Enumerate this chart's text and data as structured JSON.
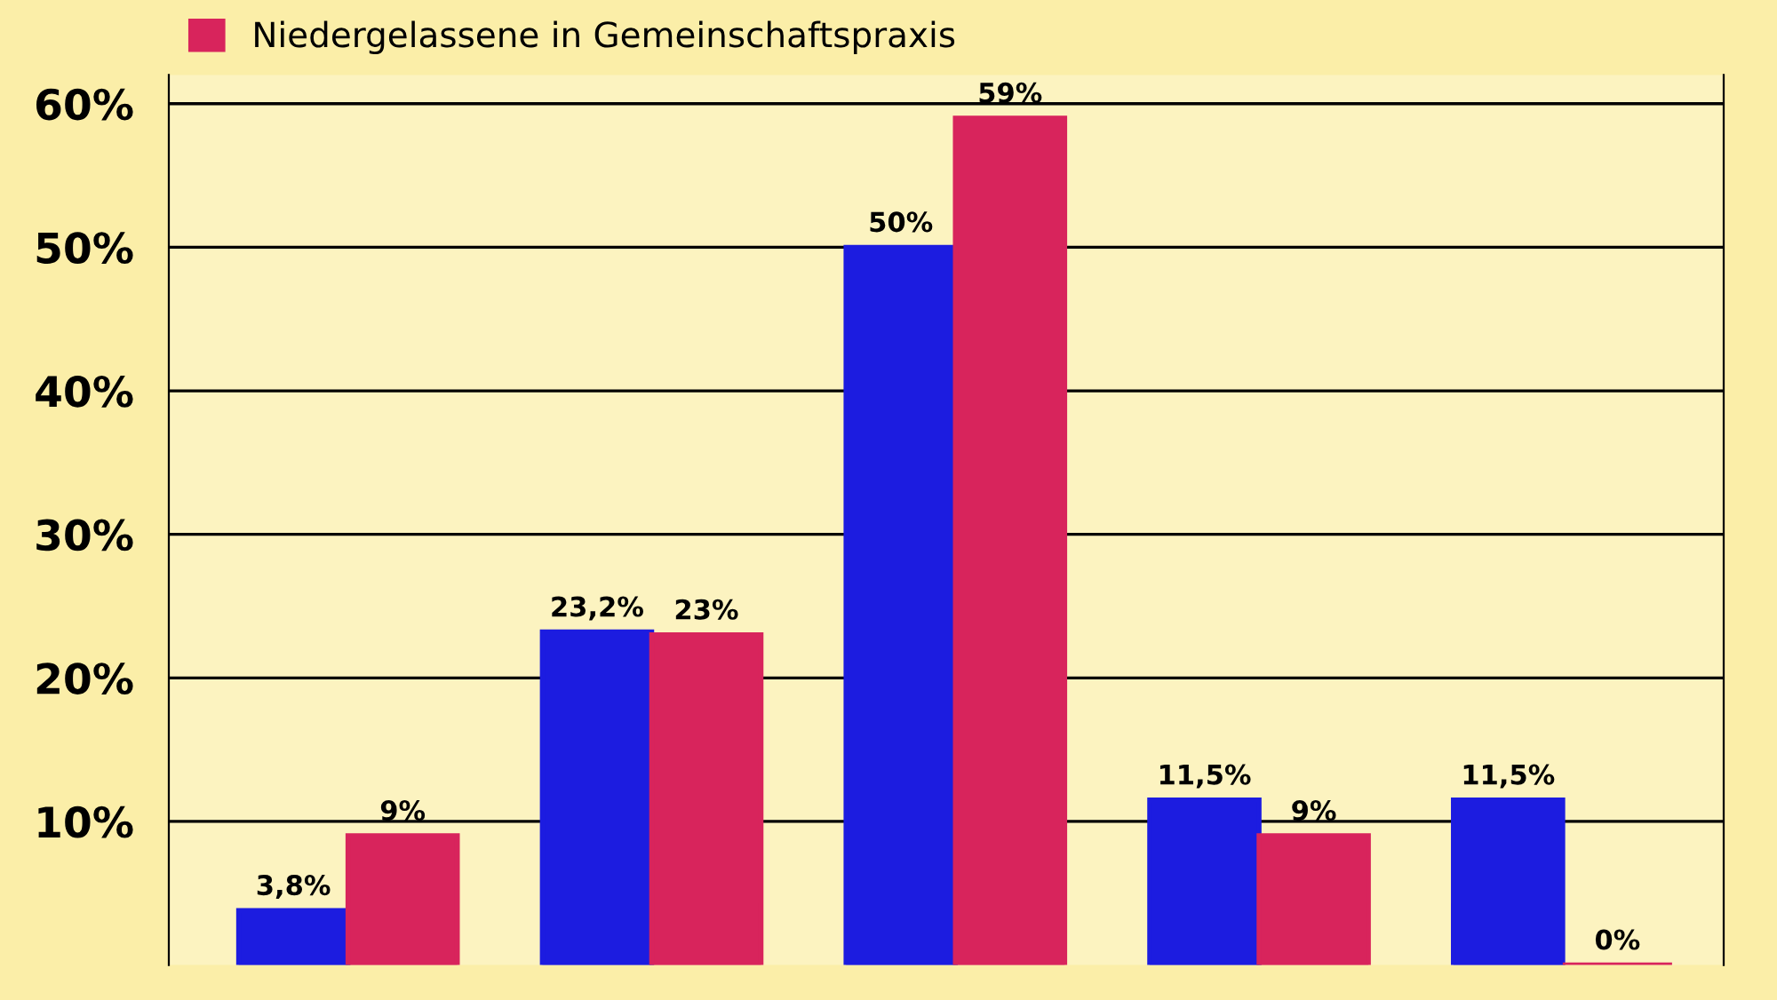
{
  "chart_data": {
    "type": "bar",
    "categories": [
      null,
      null,
      null,
      null,
      null
    ],
    "series": [
      {
        "color": "#1c1ce0",
        "values": [
          3.8,
          23.2,
          50,
          11.5,
          11.5
        ],
        "value_labels": [
          "3,8%",
          "23,2%",
          "50%",
          "11,5%",
          "11,5%"
        ]
      },
      {
        "name": "Niedergelassene in Gemeinschaftspraxis",
        "color": "#d8245c",
        "values": [
          9,
          23,
          59,
          9,
          0
        ],
        "value_labels": [
          "9%",
          "23%",
          "59%",
          "9%",
          "0%"
        ]
      }
    ],
    "ylim": [
      0,
      62
    ],
    "yticks": [
      {
        "value": 10,
        "label": "10%"
      },
      {
        "value": 20,
        "label": "20%"
      },
      {
        "value": 30,
        "label": "30%"
      },
      {
        "value": 40,
        "label": "40%"
      },
      {
        "value": 50,
        "label": "50%"
      },
      {
        "value": 60,
        "label": "60%"
      }
    ],
    "tick_labels": "y",
    "grid": "y",
    "legend": "top left"
  }
}
